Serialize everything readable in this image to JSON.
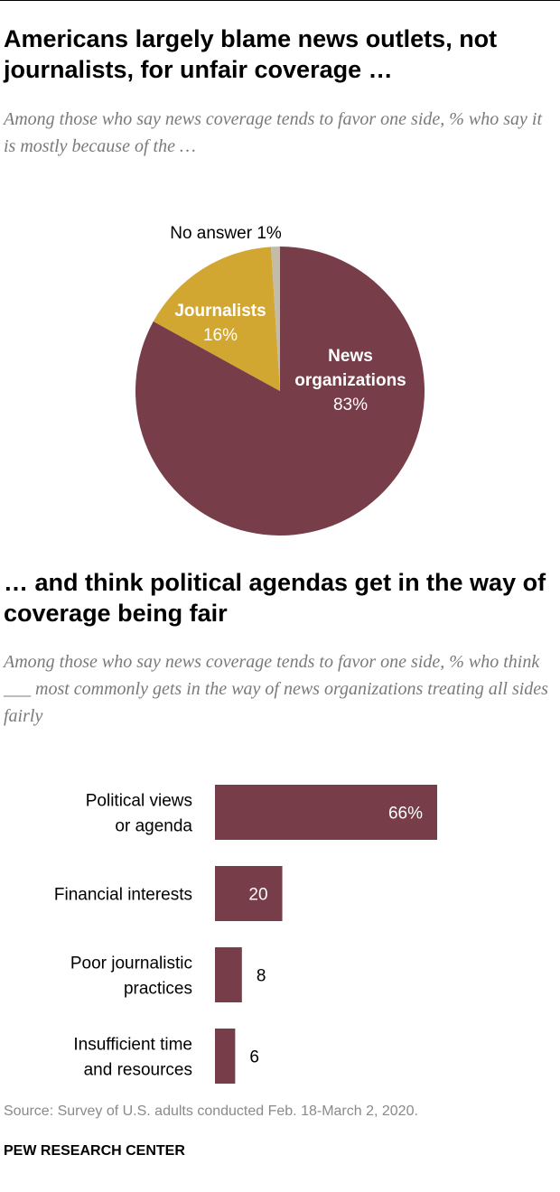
{
  "charts": {
    "pie": {
      "title": "Americans largely blame news outlets, not journalists, for unfair coverage …",
      "subtitle": "Among those who say news coverage tends to favor one side, % who say it is mostly because of the …"
    },
    "bar": {
      "title": "… and think political agendas get in the way of coverage being fair",
      "subtitle": "Among those who say news coverage tends to favor one side, % who think ___ most commonly gets in the way of news organizations treating all sides fairly"
    }
  },
  "chart_data": [
    {
      "type": "pie",
      "title": "Americans largely blame news outlets, not journalists, for unfair coverage …",
      "slices": [
        {
          "label_lines": [
            "News",
            "organizations"
          ],
          "value": 83,
          "value_label": "83%",
          "color": "#773d48"
        },
        {
          "label_lines": [
            "Journalists"
          ],
          "value": 16,
          "value_label": "16%",
          "color": "#d1a731"
        },
        {
          "label_lines": [
            "No answer"
          ],
          "value": 1,
          "value_label": "1%",
          "color": "#c3bca6",
          "external_label": "No answer 1%"
        }
      ]
    },
    {
      "type": "bar",
      "orientation": "horizontal",
      "title": "… and think political agendas get in the way of coverage being fair",
      "categories": [
        [
          "Political views",
          "or agenda"
        ],
        [
          "Financial interests"
        ],
        [
          "Poor journalistic",
          "practices"
        ],
        [
          "Insufficient time",
          "and resources"
        ]
      ],
      "values": [
        66,
        20,
        8,
        6
      ],
      "value_labels": [
        "66%",
        "20",
        "8",
        "6"
      ],
      "color": "#773d48"
    }
  ],
  "footer": {
    "source": "Source: Survey of U.S. adults conducted Feb. 18-March 2, 2020.",
    "brand": "PEW RESEARCH CENTER"
  }
}
